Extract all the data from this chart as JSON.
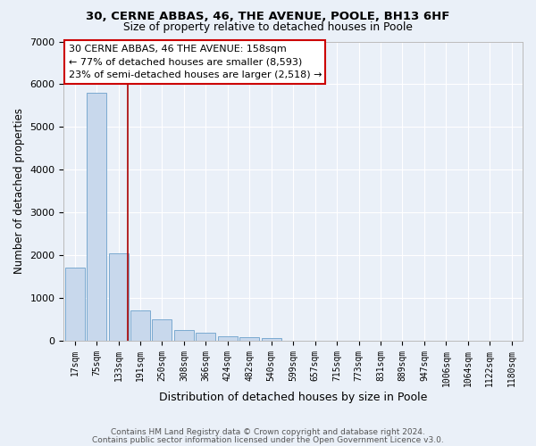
{
  "title1": "30, CERNE ABBAS, 46, THE AVENUE, POOLE, BH13 6HF",
  "title2": "Size of property relative to detached houses in Poole",
  "xlabel": "Distribution of detached houses by size in Poole",
  "ylabel": "Number of detached properties",
  "categories": [
    "17sqm",
    "75sqm",
    "133sqm",
    "191sqm",
    "250sqm",
    "308sqm",
    "366sqm",
    "424sqm",
    "482sqm",
    "540sqm",
    "599sqm",
    "657sqm",
    "715sqm",
    "773sqm",
    "831sqm",
    "889sqm",
    "947sqm",
    "1006sqm",
    "1064sqm",
    "1122sqm",
    "1180sqm"
  ],
  "values": [
    1700,
    5800,
    2050,
    700,
    490,
    240,
    190,
    100,
    75,
    50,
    0,
    0,
    0,
    0,
    0,
    0,
    0,
    0,
    0,
    0,
    0
  ],
  "bar_color": "#c8d8ec",
  "bar_edge_color": "#7baad0",
  "vline_color": "#aa0000",
  "annotation_text": "30 CERNE ABBAS, 46 THE AVENUE: 158sqm\n← 77% of detached houses are smaller (8,593)\n23% of semi-detached houses are larger (2,518) →",
  "ylim": [
    0,
    7000
  ],
  "yticks": [
    0,
    1000,
    2000,
    3000,
    4000,
    5000,
    6000,
    7000
  ],
  "footer1": "Contains HM Land Registry data © Crown copyright and database right 2024.",
  "footer2": "Contains public sector information licensed under the Open Government Licence v3.0.",
  "bg_color": "#eaf0f8",
  "grid_color": "#ffffff"
}
